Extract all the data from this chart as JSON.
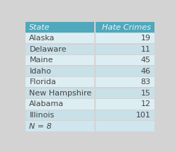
{
  "col_headers": [
    "State",
    "Hate Crimes"
  ],
  "rows": [
    [
      "Alaska",
      "19"
    ],
    [
      "Delaware",
      "11"
    ],
    [
      "Maine",
      "45"
    ],
    [
      "Idaho",
      "46"
    ],
    [
      "Florida",
      "83"
    ],
    [
      "New Hampshire",
      "15"
    ],
    [
      "Alabama",
      "12"
    ],
    [
      "Illinois",
      "101"
    ]
  ],
  "footer": "N = 8",
  "header_bg": "#4fa8bc",
  "header_text_color": "#e8f4f7",
  "row_bg_light": "#ddeef3",
  "row_bg_dark": "#c8e0e8",
  "footer_bg": "#d0e6ee",
  "outer_bg": "#d3d3d3",
  "border_color": "#ffffff",
  "text_color": "#444444",
  "header_fontsize": 8,
  "body_fontsize": 8,
  "footer_fontsize": 8,
  "col_split": 0.54
}
